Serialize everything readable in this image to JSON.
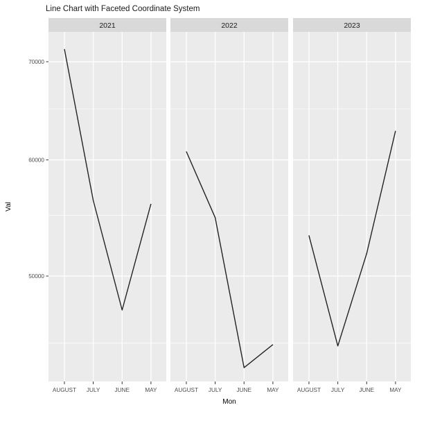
{
  "colors": {
    "page_bg": "#FFFFFF",
    "panel_bg": "#EBEBEB",
    "strip_bg": "#D9D9D9",
    "grid": "#FFFFFF",
    "line": "#222222",
    "tick_label": "#4D4D4D",
    "strip_text": "#1A1A1A",
    "axis_title": "#000000",
    "tick_mark": "#333333"
  },
  "chart_data": {
    "type": "line",
    "title": "Line Chart with Faceted Coordinate System",
    "xlabel": "Mon",
    "ylabel": "Val",
    "facets": [
      "2021",
      "2022",
      "2023"
    ],
    "categories": [
      "AUGUST",
      "JULY",
      "JUNE",
      "MAY"
    ],
    "series": [
      {
        "name": "2021",
        "values": [
          71400,
          56300,
          47400,
          56000
        ]
      },
      {
        "name": "2022",
        "values": [
          60800,
          54800,
          43300,
          44900
        ]
      },
      {
        "name": "2023",
        "values": [
          53300,
          44800,
          51800,
          62800
        ]
      }
    ],
    "y_axis": {
      "scale": "log10",
      "major_ticks": [
        70000,
        60000,
        50000
      ],
      "minor_gridlines": [
        65000,
        55000,
        45000
      ],
      "range_approx": [
        42400,
        73400
      ]
    },
    "grid": true,
    "legend": false
  }
}
